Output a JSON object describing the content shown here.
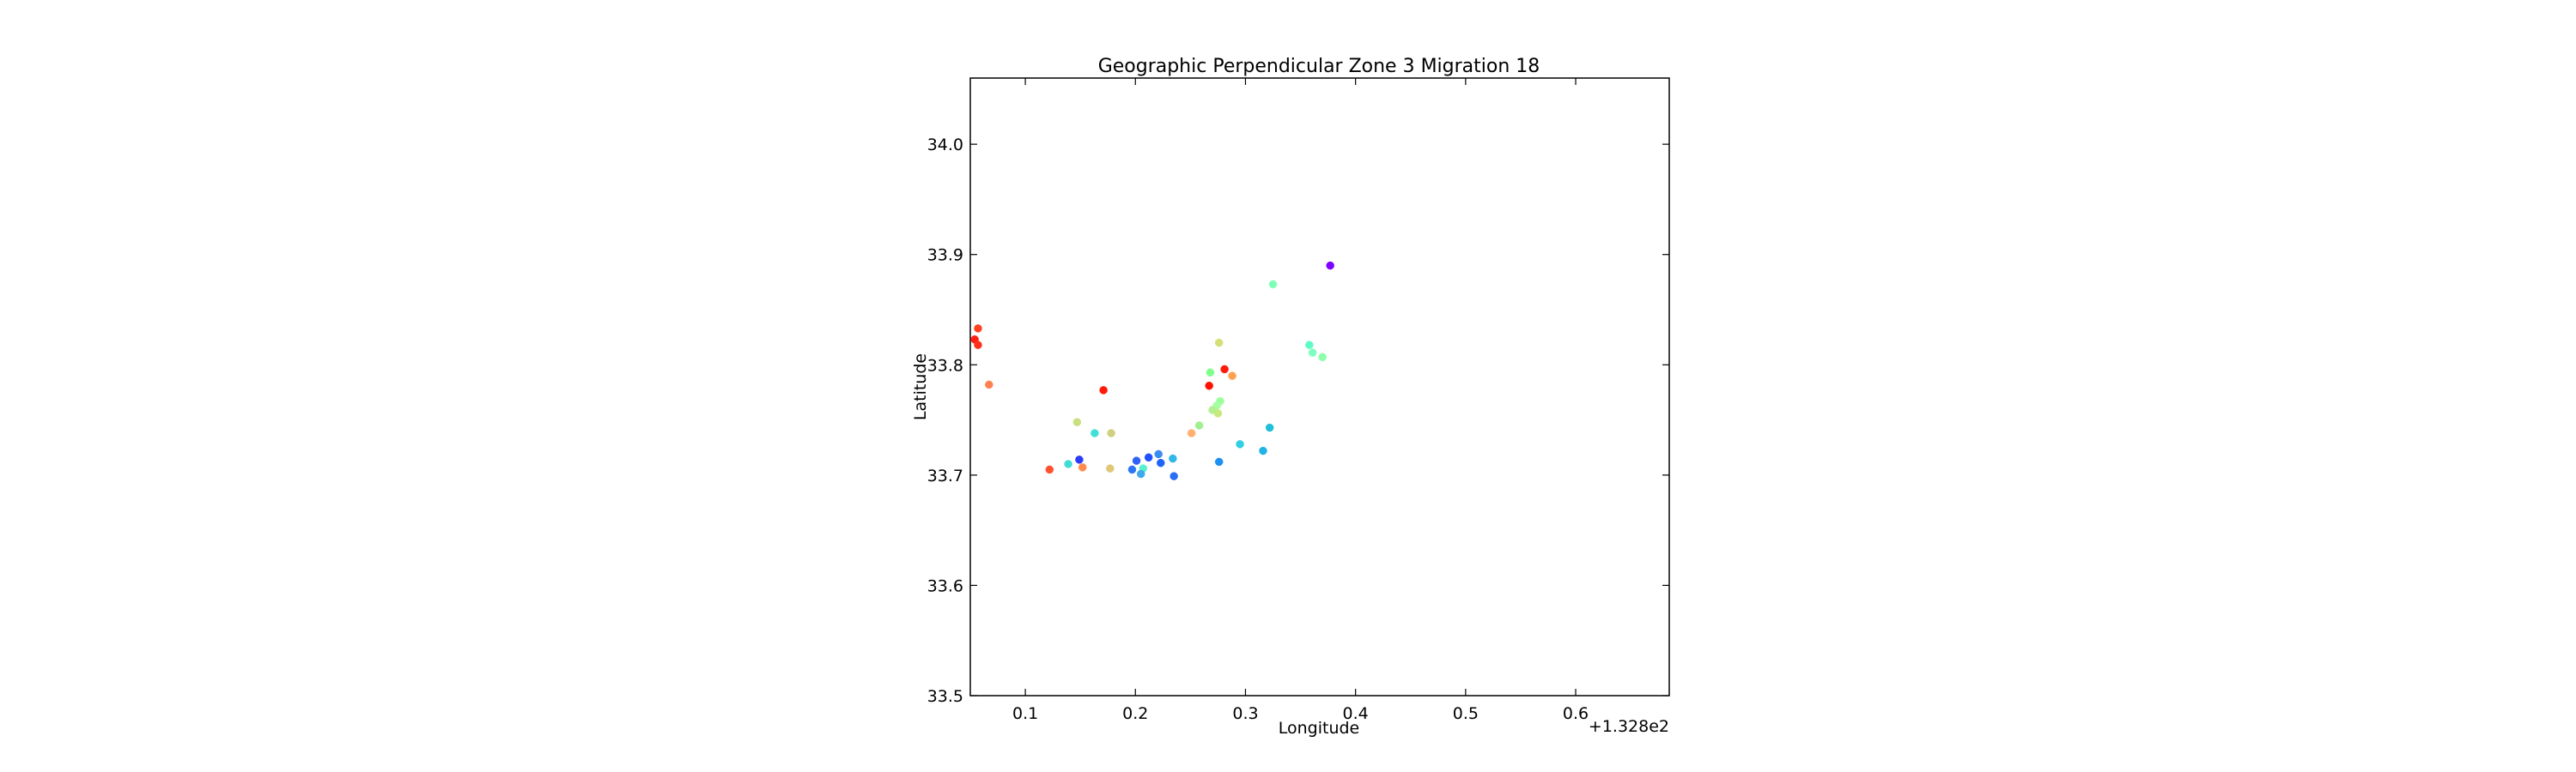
{
  "chart_data": {
    "type": "scatter",
    "title": "Geographic Perpendicular Zone 3 Migration 18",
    "xlabel": "Longitude",
    "ylabel": "Latitude",
    "x_offset_label": "+1.328e2",
    "xlim": [
      0.05,
      0.685
    ],
    "ylim": [
      33.5,
      34.06
    ],
    "x_ticks": [
      0.1,
      0.2,
      0.3,
      0.4,
      0.5,
      0.6
    ],
    "x_tick_labels": [
      "0.1",
      "0.2",
      "0.3",
      "0.4",
      "0.5",
      "0.6"
    ],
    "y_ticks": [
      33.5,
      33.6,
      33.7,
      33.8,
      33.9,
      34.0
    ],
    "y_tick_labels": [
      "33.5",
      "33.6",
      "33.7",
      "33.8",
      "33.9",
      "34.0"
    ],
    "grid": false,
    "colormap": "rainbow",
    "points": [
      {
        "x": 0.377,
        "y": 33.89,
        "color": "#7f00ff"
      },
      {
        "x": 0.325,
        "y": 33.873,
        "color": "#7effb9"
      },
      {
        "x": 0.358,
        "y": 33.818,
        "color": "#5ffcc6"
      },
      {
        "x": 0.361,
        "y": 33.811,
        "color": "#7fffbf"
      },
      {
        "x": 0.37,
        "y": 33.807,
        "color": "#8cffaa"
      },
      {
        "x": 0.057,
        "y": 33.833,
        "color": "#ff4020"
      },
      {
        "x": 0.054,
        "y": 33.823,
        "color": "#ff2010"
      },
      {
        "x": 0.057,
        "y": 33.818,
        "color": "#ff3018"
      },
      {
        "x": 0.067,
        "y": 33.782,
        "color": "#ff8050"
      },
      {
        "x": 0.276,
        "y": 33.82,
        "color": "#d4e076"
      },
      {
        "x": 0.281,
        "y": 33.796,
        "color": "#ff1a0c"
      },
      {
        "x": 0.268,
        "y": 33.793,
        "color": "#80ff8c"
      },
      {
        "x": 0.288,
        "y": 33.79,
        "color": "#ffa050"
      },
      {
        "x": 0.267,
        "y": 33.781,
        "color": "#ff1000"
      },
      {
        "x": 0.171,
        "y": 33.777,
        "color": "#ff1a08"
      },
      {
        "x": 0.277,
        "y": 33.767,
        "color": "#9cff9c"
      },
      {
        "x": 0.274,
        "y": 33.763,
        "color": "#a6ffa0"
      },
      {
        "x": 0.27,
        "y": 33.759,
        "color": "#b0f090"
      },
      {
        "x": 0.275,
        "y": 33.756,
        "color": "#c8e880"
      },
      {
        "x": 0.147,
        "y": 33.748,
        "color": "#c8e080"
      },
      {
        "x": 0.258,
        "y": 33.745,
        "color": "#a0f090"
      },
      {
        "x": 0.322,
        "y": 33.743,
        "color": "#20c0d8"
      },
      {
        "x": 0.163,
        "y": 33.738,
        "color": "#40e0d8"
      },
      {
        "x": 0.178,
        "y": 33.738,
        "color": "#d0d080"
      },
      {
        "x": 0.251,
        "y": 33.738,
        "color": "#ffb070"
      },
      {
        "x": 0.295,
        "y": 33.728,
        "color": "#30d0e0"
      },
      {
        "x": 0.316,
        "y": 33.722,
        "color": "#20b4e4"
      },
      {
        "x": 0.221,
        "y": 33.719,
        "color": "#3a8cf0"
      },
      {
        "x": 0.212,
        "y": 33.716,
        "color": "#2050ff"
      },
      {
        "x": 0.149,
        "y": 33.714,
        "color": "#2a3cf8"
      },
      {
        "x": 0.201,
        "y": 33.713,
        "color": "#3060f8"
      },
      {
        "x": 0.234,
        "y": 33.715,
        "color": "#30b8e8"
      },
      {
        "x": 0.223,
        "y": 33.711,
        "color": "#1e64f8"
      },
      {
        "x": 0.276,
        "y": 33.712,
        "color": "#1e90f0"
      },
      {
        "x": 0.139,
        "y": 33.71,
        "color": "#40dcd8"
      },
      {
        "x": 0.122,
        "y": 33.705,
        "color": "#ff5030"
      },
      {
        "x": 0.152,
        "y": 33.707,
        "color": "#ff8c4c"
      },
      {
        "x": 0.177,
        "y": 33.706,
        "color": "#e0c878"
      },
      {
        "x": 0.197,
        "y": 33.705,
        "color": "#2c74f4"
      },
      {
        "x": 0.207,
        "y": 33.706,
        "color": "#58f0d0"
      },
      {
        "x": 0.205,
        "y": 33.701,
        "color": "#40a8ec"
      },
      {
        "x": 0.235,
        "y": 33.699,
        "color": "#2a6ef4"
      }
    ]
  }
}
